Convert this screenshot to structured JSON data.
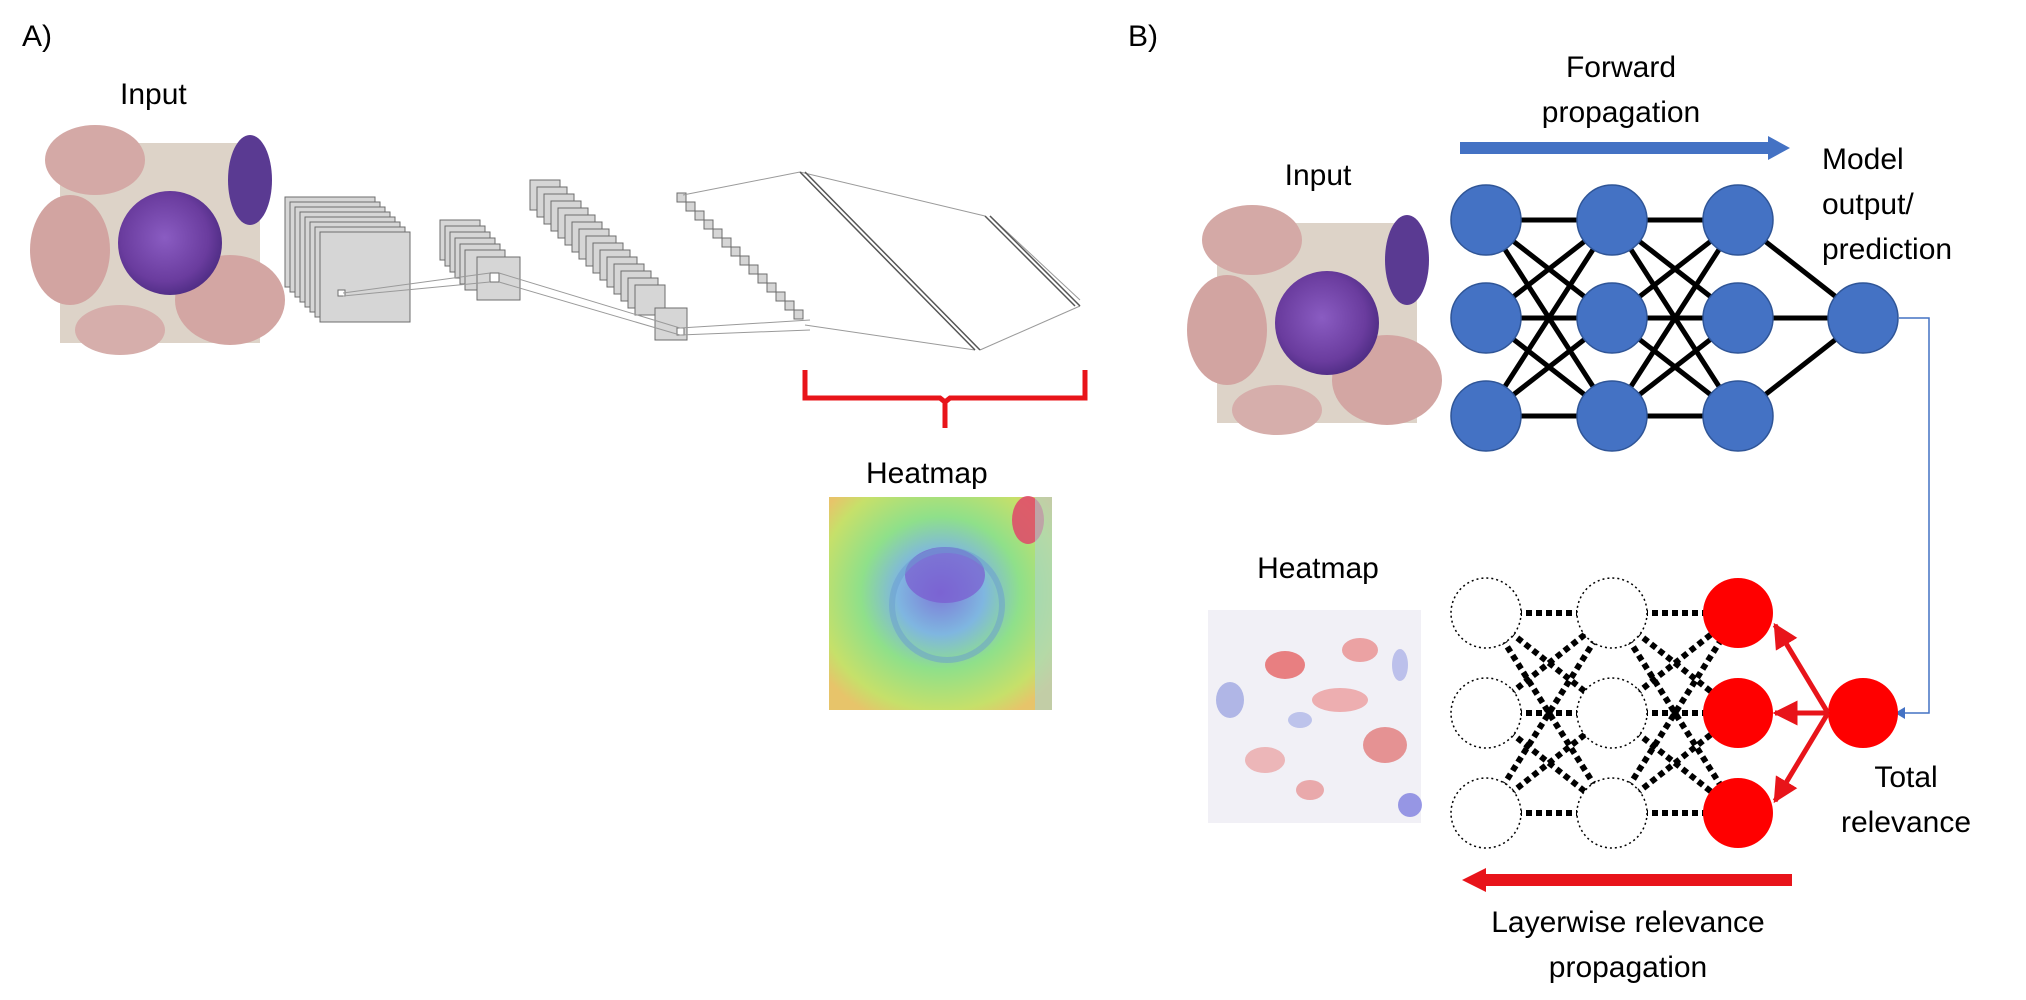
{
  "panel_a": {
    "label": "A)",
    "input_label": "Input",
    "heatmap_label": "Heatmap"
  },
  "panel_b": {
    "label": "B)",
    "forward_label_line1": "Forward",
    "forward_label_line2": "propagation",
    "input_label": "Input",
    "model_output_line1": "Model",
    "model_output_line2": "output/",
    "model_output_line3": "prediction",
    "heatmap_label": "Heatmap",
    "total_relevance_line1": "Total",
    "total_relevance_line2": "relevance",
    "lrp_label_line1": "Layerwise relevance",
    "lrp_label_line2": "propagation"
  },
  "colors": {
    "node_blue": "#4472C4",
    "node_red": "#FF0000",
    "arrow_blue": "#4472C4",
    "arrow_red": "#E8141A",
    "brace_red": "#E8141A",
    "cell_purple": "#6B3FA0",
    "background_pink": "#D9B2B2"
  }
}
